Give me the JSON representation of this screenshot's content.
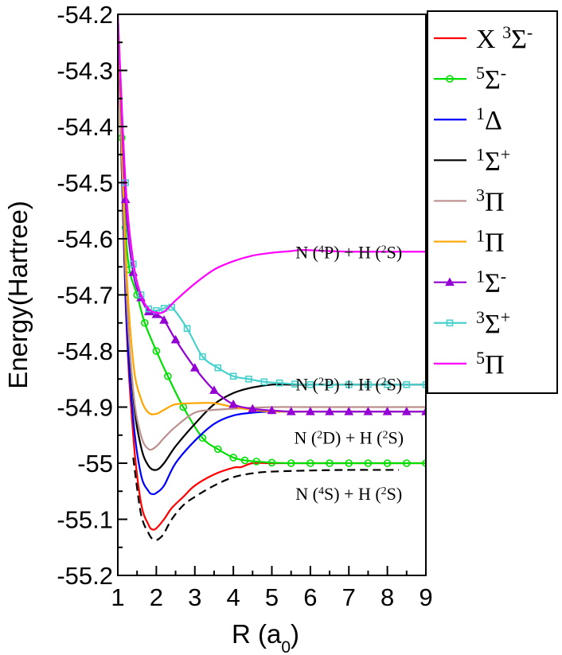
{
  "chart_data": {
    "type": "line",
    "xlabel": "R (a₀)",
    "ylabel": "Energy(Hartree)",
    "xlim": [
      1,
      9
    ],
    "ylim": [
      -55.2,
      -54.2
    ],
    "xticks": [
      "1",
      "2",
      "3",
      "4",
      "5",
      "6",
      "7",
      "8",
      "9"
    ],
    "yticks": [
      "-54.2",
      "-54.3",
      "-54.4",
      "-54.5",
      "-54.6",
      "-54.7",
      "-54.8",
      "-54.9",
      "-55",
      "-55.1",
      "-55.2"
    ],
    "grid": false,
    "legend_position": "right-outside",
    "annotations": [
      {
        "text": "N (⁴P) + H (²S)",
        "x": 7.0,
        "y": -54.635
      },
      {
        "text": "N (²P) + H (²S)",
        "x": 7.0,
        "y": -54.87
      },
      {
        "text": "N (²D) + H (²S)",
        "x": 7.0,
        "y": -54.965
      },
      {
        "text": "N (⁴S) + H (²S)",
        "x": 7.0,
        "y": -55.065
      }
    ],
    "series": [
      {
        "name": "X ³Σ⁻",
        "color": "#ff0000",
        "marker": "none",
        "dash": false,
        "x": [
          1.0,
          1.2,
          1.4,
          1.6,
          1.8,
          1.9,
          2.0,
          2.2,
          2.4,
          2.7,
          3.0,
          3.5,
          4.0,
          4.2,
          4.5,
          5.0,
          6.0,
          7.0,
          8.0,
          9.0
        ],
        "y": [
          -54.2,
          -54.71,
          -54.95,
          -55.07,
          -55.11,
          -55.118,
          -55.116,
          -55.1,
          -55.08,
          -55.06,
          -55.04,
          -55.02,
          -55.008,
          -55.007,
          -55.0,
          -55.0,
          -55.0,
          -55.0,
          -55.0,
          -55.0
        ]
      },
      {
        "name": "⁵Σ⁻",
        "color": "#00e000",
        "marker": "circle",
        "dash": false,
        "x": [
          1.0,
          1.1,
          1.2,
          1.3,
          1.5,
          1.7,
          2.0,
          2.3,
          2.7,
          3.2,
          3.6,
          4.0,
          4.3,
          4.6,
          5.0,
          5.5,
          6.0,
          6.5,
          7.0,
          7.5,
          8.0,
          8.5,
          9.0
        ],
        "y": [
          -54.2,
          -54.42,
          -54.58,
          -54.655,
          -54.7,
          -54.75,
          -54.8,
          -54.845,
          -54.9,
          -54.955,
          -54.975,
          -54.99,
          -54.995,
          -54.997,
          -54.999,
          -55.0,
          -55.0,
          -55.0,
          -55.0,
          -55.0,
          -55.0,
          -55.0,
          -55.0
        ]
      },
      {
        "name": "¹Δ",
        "color": "#0000ff",
        "marker": "none",
        "dash": false,
        "x": [
          1.0,
          1.2,
          1.4,
          1.6,
          1.8,
          1.9,
          2.0,
          2.2,
          2.5,
          3.0,
          3.5,
          4.0,
          4.5,
          5.0,
          6.0,
          7.0,
          8.0,
          9.0
        ],
        "y": [
          -54.2,
          -54.7,
          -54.92,
          -55.02,
          -55.05,
          -55.055,
          -55.053,
          -55.04,
          -55.0,
          -54.96,
          -54.93,
          -54.915,
          -54.91,
          -54.908,
          -54.908,
          -54.908,
          -54.908,
          -54.908
        ]
      },
      {
        "name": "¹Σ⁺",
        "color": "#000000",
        "marker": "none",
        "dash": false,
        "x": [
          1.0,
          1.2,
          1.4,
          1.6,
          1.8,
          2.0,
          2.2,
          2.5,
          3.0,
          3.5,
          4.0,
          4.5,
          5.0,
          5.5,
          6.0,
          7.0,
          8.0,
          9.0
        ],
        "y": [
          -54.2,
          -54.66,
          -54.88,
          -54.97,
          -55.005,
          -55.012,
          -55.0,
          -54.97,
          -54.93,
          -54.895,
          -54.875,
          -54.865,
          -54.86,
          -54.86,
          -54.86,
          -54.86,
          -54.86,
          -54.86
        ]
      },
      {
        "name": "³Π",
        "color": "#bc8f8f",
        "marker": "none",
        "dash": false,
        "x": [
          1.0,
          1.2,
          1.4,
          1.6,
          1.8,
          2.0,
          2.2,
          2.5,
          3.0,
          3.5,
          4.0,
          5.0,
          6.0,
          7.0,
          8.0,
          9.0
        ],
        "y": [
          -54.2,
          -54.66,
          -54.87,
          -54.95,
          -54.975,
          -54.97,
          -54.955,
          -54.935,
          -54.91,
          -54.905,
          -54.903,
          -54.9,
          -54.9,
          -54.9,
          -54.9,
          -54.9
        ]
      },
      {
        "name": "¹Π",
        "color": "#ffa500",
        "marker": "none",
        "dash": false,
        "x": [
          1.0,
          1.2,
          1.4,
          1.6,
          1.8,
          2.0,
          2.2,
          2.5,
          3.0,
          3.5,
          4.0,
          4.5,
          5.0,
          6.0,
          7.0,
          8.0,
          9.0
        ],
        "y": [
          -54.2,
          -54.62,
          -54.82,
          -54.885,
          -54.91,
          -54.912,
          -54.905,
          -54.895,
          -54.893,
          -54.893,
          -54.9,
          -54.905,
          -54.908,
          -54.908,
          -54.908,
          -54.908,
          -54.908
        ]
      },
      {
        "name": "¹Σ⁻",
        "color": "#9400d3",
        "marker": "triangle",
        "dash": false,
        "x": [
          1.0,
          1.2,
          1.4,
          1.6,
          1.8,
          2.0,
          2.2,
          2.5,
          3.0,
          3.5,
          4.0,
          4.5,
          5.0,
          5.5,
          6.0,
          6.5,
          7.0,
          7.5,
          8.0,
          8.5,
          9.0
        ],
        "y": [
          -54.2,
          -54.53,
          -54.66,
          -54.705,
          -54.73,
          -54.735,
          -54.745,
          -54.78,
          -54.83,
          -54.87,
          -54.895,
          -54.903,
          -54.906,
          -54.908,
          -54.908,
          -54.908,
          -54.908,
          -54.908,
          -54.908,
          -54.908,
          -54.908
        ]
      },
      {
        "name": "³Σ⁺",
        "color": "#48d1cc",
        "marker": "square",
        "dash": false,
        "x": [
          1.0,
          1.2,
          1.4,
          1.6,
          1.8,
          2.0,
          2.2,
          2.4,
          2.8,
          3.2,
          3.6,
          4.0,
          4.4,
          4.8,
          5.2,
          5.6,
          6.0,
          6.5,
          7.0,
          7.5,
          8.0,
          8.5,
          9.0
        ],
        "y": [
          -54.2,
          -54.5,
          -54.645,
          -54.7,
          -54.725,
          -54.728,
          -54.724,
          -54.722,
          -54.76,
          -54.81,
          -54.83,
          -54.845,
          -54.85,
          -54.855,
          -54.857,
          -54.859,
          -54.86,
          -54.86,
          -54.86,
          -54.86,
          -54.86,
          -54.86,
          -54.86
        ]
      },
      {
        "name": "⁵Π",
        "color": "#ff00ff",
        "marker": "none",
        "dash": false,
        "x": [
          1.0,
          1.2,
          1.4,
          1.6,
          1.8,
          2.0,
          2.2,
          2.5,
          3.0,
          3.5,
          4.0,
          4.5,
          5.0,
          5.5,
          5.8,
          6.5,
          7.0,
          8.0,
          9.0
        ],
        "y": [
          -54.2,
          -54.5,
          -54.64,
          -54.7,
          -54.725,
          -54.732,
          -54.73,
          -54.71,
          -54.68,
          -54.655,
          -54.64,
          -54.63,
          -54.625,
          -54.622,
          -54.62,
          -54.622,
          -54.623,
          -54.623,
          -54.623
        ]
      },
      {
        "name": "",
        "color": "#000000",
        "marker": "none",
        "dash": true,
        "x": [
          1.4,
          1.6,
          1.8,
          1.9,
          2.0,
          2.1,
          2.2,
          2.4,
          2.7,
          3.0,
          3.5,
          4.0,
          4.5,
          5.0,
          6.0,
          7.0,
          8.0,
          8.3
        ],
        "y": [
          -54.99,
          -55.09,
          -55.125,
          -55.135,
          -55.137,
          -55.133,
          -55.125,
          -55.1,
          -55.075,
          -55.06,
          -55.04,
          -55.025,
          -55.018,
          -55.015,
          -55.013,
          -55.012,
          -55.012,
          -55.012
        ]
      }
    ]
  }
}
